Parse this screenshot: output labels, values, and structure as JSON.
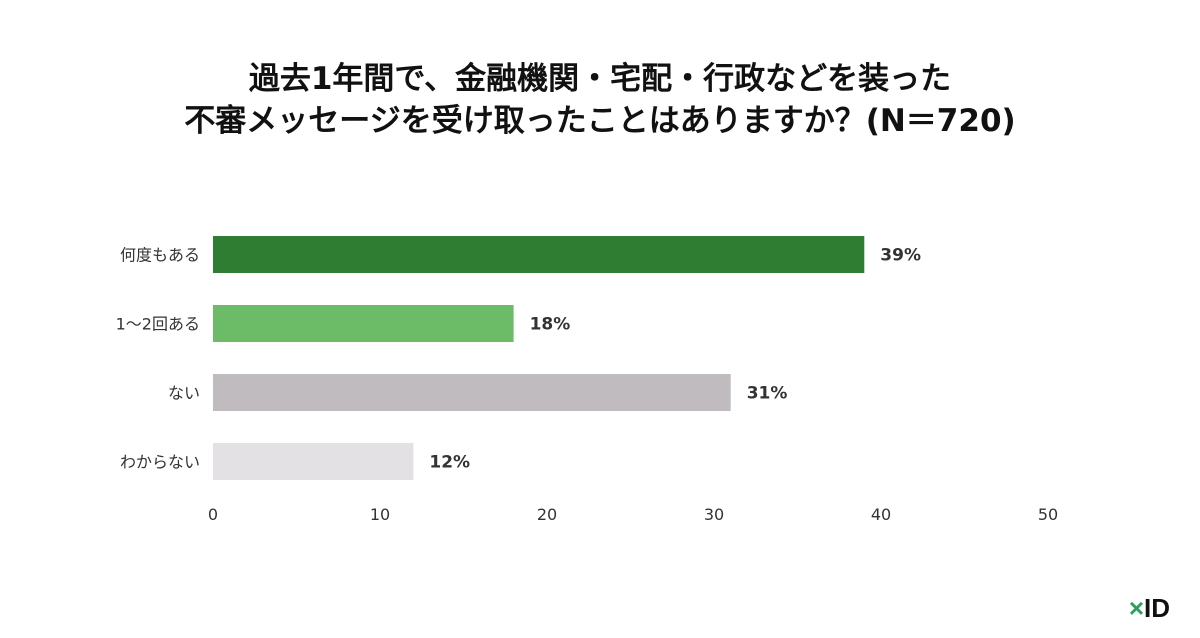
{
  "chart_data": {
    "type": "bar",
    "orientation": "horizontal",
    "title_lines": [
      "過去1年間で、金融機関・宅配・行政などを装った",
      "不審メッセージを受け取ったことはありますか？(N＝720)"
    ],
    "categories": [
      "何度もある",
      "1〜2回ある",
      "ない",
      "わからない"
    ],
    "values": [
      39,
      18,
      31,
      12
    ],
    "data_labels": [
      "39%",
      "18%",
      "31%",
      "12%"
    ],
    "colors": [
      "#2e7d32",
      "#6bbb67",
      "#bfbbbf",
      "#e3e1e4"
    ],
    "xlim": [
      0,
      50
    ],
    "xticks": [
      0,
      10,
      20,
      30,
      40,
      50
    ],
    "grid": false,
    "legend": "none"
  },
  "logo": {
    "mark": "×",
    "text": "ID"
  }
}
